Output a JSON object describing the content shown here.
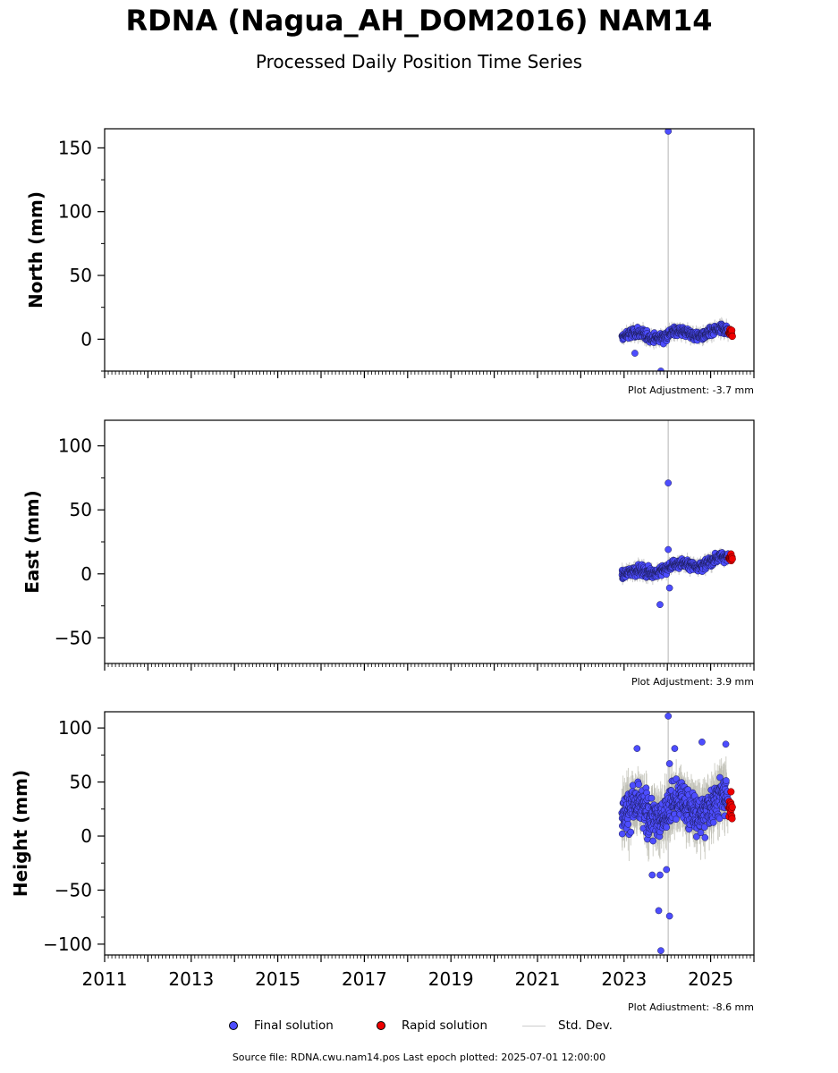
{
  "title": "RDNA (Nagua_AH_DOM2016) NAM14",
  "subtitle": "Processed Daily Position Time Series",
  "colors": {
    "final": "#4d4dff",
    "rapid": "#ee0000",
    "std_dev": "#cccccc",
    "axis": "#000000"
  },
  "legend": {
    "final_label": "Final solution",
    "rapid_label": "Rapid solution",
    "std_label": "Std. Dev."
  },
  "footer": {
    "source": "Source file: RDNA.cwu.nam14.pos  Last epoch plotted: 2025-07-01 12:00:00"
  },
  "chart_data": [
    {
      "type": "scatter",
      "ylabel": "North (mm)",
      "xlim": [
        2011.0,
        2026.0
      ],
      "ylim": [
        -25,
        165
      ],
      "yticks": [
        0,
        50,
        100,
        150
      ],
      "ytick_labels": [
        "0",
        "50",
        "100",
        "150"
      ],
      "adjustment": "Plot Adjustment: -3.7 mm",
      "show_xtick_labels": false,
      "final_range": [
        2022.95,
        2025.4
      ],
      "rapid_range": [
        2025.42,
        2025.5
      ],
      "outliers": [
        {
          "x": 2024.02,
          "y": 163
        },
        {
          "x": 2023.25,
          "y": -11
        },
        {
          "x": 2023.85,
          "y": -25
        }
      ],
      "std_spike": {
        "x": 2024.02,
        "y0": -25,
        "y1": 165
      }
    },
    {
      "type": "scatter",
      "ylabel": "East (mm)",
      "xlim": [
        2011.0,
        2026.0
      ],
      "ylim": [
        -70,
        120
      ],
      "yticks": [
        -50,
        0,
        50,
        100
      ],
      "ytick_labels": [
        "−50",
        "0",
        "50",
        "100"
      ],
      "adjustment": "Plot Adjustment: 3.9 mm",
      "show_xtick_labels": false,
      "final_range": [
        2022.95,
        2025.4
      ],
      "rapid_range": [
        2025.42,
        2025.5
      ],
      "outliers": [
        {
          "x": 2024.02,
          "y": 71
        },
        {
          "x": 2024.02,
          "y": 19
        },
        {
          "x": 2023.83,
          "y": -24
        },
        {
          "x": 2024.05,
          "y": -11
        }
      ],
      "std_spike": {
        "x": 2024.02,
        "y0": -70,
        "y1": 120
      }
    },
    {
      "type": "scatter",
      "ylabel": "Height (mm)",
      "xlim": [
        2011.0,
        2026.0
      ],
      "ylim": [
        -110,
        115
      ],
      "yticks": [
        -100,
        -50,
        0,
        50,
        100
      ],
      "ytick_labels": [
        "−100",
        "−50",
        "0",
        "50",
        "100"
      ],
      "adjustment": "Plot Adjustment: -8.6 mm",
      "show_xtick_labels": true,
      "xticks": [
        2011,
        2013,
        2015,
        2017,
        2019,
        2021,
        2023,
        2025
      ],
      "xtick_labels": [
        "2011",
        "2013",
        "2015",
        "2017",
        "2019",
        "2021",
        "2023",
        "2025"
      ],
      "final_range": [
        2022.95,
        2025.4
      ],
      "rapid_range": [
        2025.42,
        2025.5
      ],
      "outliers": [
        {
          "x": 2024.02,
          "y": 111
        },
        {
          "x": 2023.85,
          "y": -106
        },
        {
          "x": 2023.8,
          "y": -69
        },
        {
          "x": 2024.05,
          "y": -74
        },
        {
          "x": 2023.65,
          "y": -36
        },
        {
          "x": 2023.83,
          "y": -36
        },
        {
          "x": 2023.98,
          "y": -31
        },
        {
          "x": 2023.3,
          "y": 81
        },
        {
          "x": 2024.17,
          "y": 81
        },
        {
          "x": 2024.8,
          "y": 87
        },
        {
          "x": 2025.35,
          "y": 85
        },
        {
          "x": 2024.05,
          "y": 67
        }
      ],
      "std_spike": {
        "x": 2024.02,
        "y0": -110,
        "y1": 115
      }
    }
  ]
}
